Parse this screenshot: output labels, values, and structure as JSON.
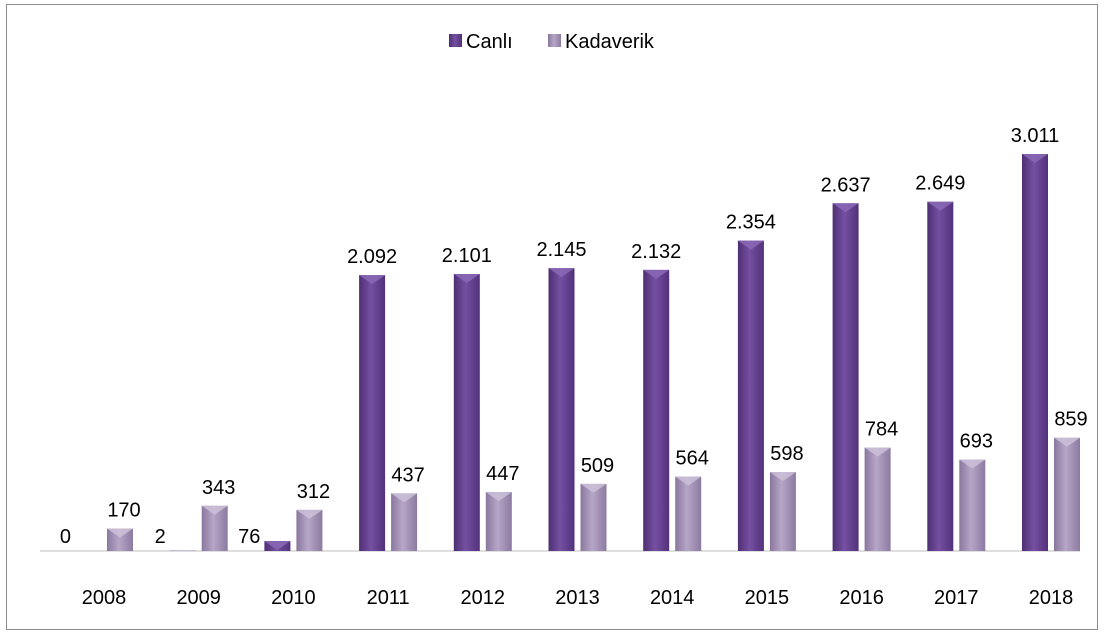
{
  "chart_data": {
    "type": "bar",
    "categories": [
      "2008",
      "2009",
      "2010",
      "2011",
      "2012",
      "2013",
      "2014",
      "2015",
      "2016",
      "2017",
      "2018"
    ],
    "series": [
      {
        "name": "Canlı",
        "values": [
          0,
          2,
          76,
          2092,
          2101,
          2145,
          2132,
          2354,
          2637,
          2649,
          3011
        ],
        "labels": [
          "0",
          "2",
          "76",
          "2.092",
          "2.101",
          "2.145",
          "2.132",
          "2.354",
          "2.637",
          "2.649",
          "3.011"
        ]
      },
      {
        "name": "Kadaverik",
        "values": [
          170,
          343,
          312,
          437,
          447,
          509,
          564,
          598,
          784,
          693,
          859
        ],
        "labels": [
          "170",
          "343",
          "312",
          "437",
          "447",
          "509",
          "564",
          "598",
          "784",
          "693",
          "859"
        ]
      }
    ],
    "ylim": [
      0,
      3500
    ],
    "grid": false,
    "legend": "top-center",
    "colors": {
      "canli": "#6b4496",
      "kadaverik": "#a08db3"
    }
  }
}
